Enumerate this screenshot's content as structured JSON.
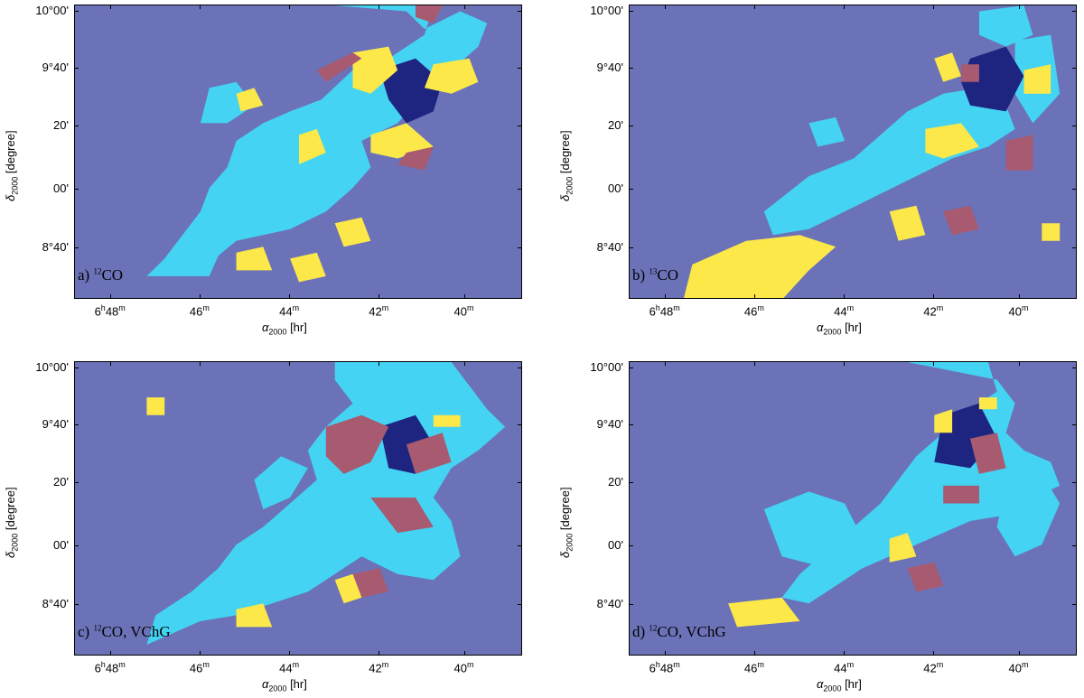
{
  "colors": {
    "background": "#6b72b8",
    "cyan": "#44d3f2",
    "yellow": "#fde84a",
    "red": "#a85a70",
    "dark": "#1e2580"
  },
  "axes": {
    "xlabel_main": "α",
    "xlabel_sub": "2000",
    "xlabel_unit": " [hr]",
    "ylabel_main": "δ",
    "ylabel_sub": "2000",
    "ylabel_unit": " [degree]",
    "xticks": [
      {
        "pre": "6",
        "sup1": "h",
        "mid": "48",
        "sup2": "m"
      },
      {
        "pre": "",
        "sup1": "",
        "mid": "46",
        "sup2": "m"
      },
      {
        "pre": "",
        "sup1": "",
        "mid": "44",
        "sup2": "m"
      },
      {
        "pre": "",
        "sup1": "",
        "mid": "42",
        "sup2": "m"
      },
      {
        "pre": "",
        "sup1": "",
        "mid": "40",
        "sup2": "m"
      }
    ],
    "yticks": [
      "10°00'",
      "9°40'",
      "20'",
      "00'",
      "8°40'"
    ]
  },
  "chart_data": [
    {
      "type": "heatmap",
      "panel": "a",
      "label_prefix": "a) ",
      "label_sup": "12",
      "label_rest": "CO",
      "xlabel": "α2000 [hr]",
      "ylabel": "δ2000 [degree]"
    },
    {
      "type": "heatmap",
      "panel": "b",
      "label_prefix": "b) ",
      "label_sup": "13",
      "label_rest": "CO",
      "xlabel": "α2000 [hr]",
      "ylabel": "δ2000 [degree]"
    },
    {
      "type": "heatmap",
      "panel": "c",
      "label_prefix": "c) ",
      "label_sup": "12",
      "label_rest": "CO, VChG",
      "xlabel": "α2000 [hr]",
      "ylabel": "δ2000 [degree]"
    },
    {
      "type": "heatmap",
      "panel": "d",
      "label_prefix": "d) ",
      "label_sup": "12",
      "label_rest": "CO, VChG",
      "xlabel": "α2000 [hr]",
      "ylabel": "δ2000 [degree]"
    }
  ]
}
